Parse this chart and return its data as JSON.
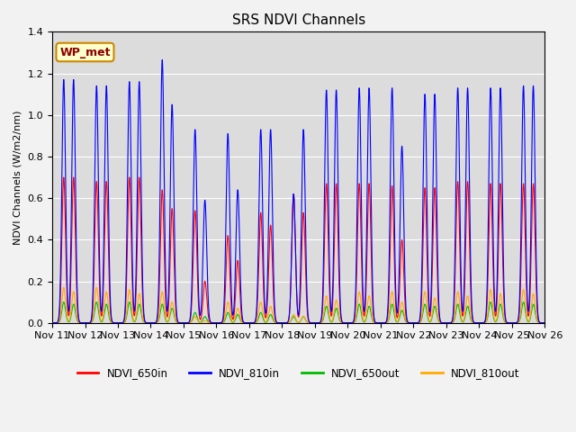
{
  "title": "SRS NDVI Channels",
  "ylabel": "NDVI Channels (W/m2/nm)",
  "annotation": "WP_met",
  "ylim": [
    0,
    1.4
  ],
  "colors": {
    "NDVI_650in": "#ff0000",
    "NDVI_810in": "#0000ff",
    "NDVI_650out": "#00bb00",
    "NDVI_810out": "#ffaa00"
  },
  "background_color": "#dcdcdc",
  "grid_color": "#ffffff",
  "x_tick_labels": [
    "Nov 11",
    "Nov 12",
    "Nov 13",
    "Nov 14",
    "Nov 15",
    "Nov 16",
    "Nov 17",
    "Nov 18",
    "Nov 19",
    "Nov 20",
    "Nov 21",
    "Nov 22",
    "Nov 23",
    "Nov 24",
    "Nov 25",
    "Nov 26"
  ],
  "peaks_810in": [
    1.17,
    1.14,
    1.16,
    1.265,
    0.93,
    0.91,
    0.93,
    0.62,
    1.12,
    1.13,
    1.13,
    1.1,
    1.13,
    1.13,
    1.14
  ],
  "peaks_650in": [
    0.7,
    0.68,
    0.7,
    0.64,
    0.54,
    0.42,
    0.53,
    0.62,
    0.67,
    0.67,
    0.66,
    0.65,
    0.68,
    0.67,
    0.67
  ],
  "peaks_650out": [
    0.1,
    0.1,
    0.1,
    0.09,
    0.05,
    0.05,
    0.05,
    0.03,
    0.08,
    0.09,
    0.09,
    0.09,
    0.09,
    0.1,
    0.1
  ],
  "peaks_810out": [
    0.17,
    0.17,
    0.16,
    0.15,
    0.03,
    0.1,
    0.1,
    0.04,
    0.13,
    0.15,
    0.15,
    0.15,
    0.15,
    0.16,
    0.16
  ],
  "peaks2_810in": [
    1.17,
    1.14,
    1.16,
    1.05,
    0.59,
    0.64,
    0.93,
    0.93,
    1.12,
    1.13,
    0.85,
    1.1,
    1.13,
    1.13,
    1.14
  ],
  "peaks2_650in": [
    0.7,
    0.68,
    0.7,
    0.55,
    0.2,
    0.3,
    0.47,
    0.53,
    0.67,
    0.67,
    0.4,
    0.65,
    0.68,
    0.67,
    0.67
  ],
  "peaks2_650out": [
    0.09,
    0.09,
    0.09,
    0.07,
    0.03,
    0.04,
    0.04,
    0.03,
    0.07,
    0.08,
    0.06,
    0.08,
    0.08,
    0.09,
    0.09
  ],
  "peaks2_810out": [
    0.15,
    0.15,
    0.14,
    0.1,
    0.01,
    0.07,
    0.08,
    0.03,
    0.11,
    0.13,
    0.1,
    0.12,
    0.13,
    0.14,
    0.14
  ]
}
